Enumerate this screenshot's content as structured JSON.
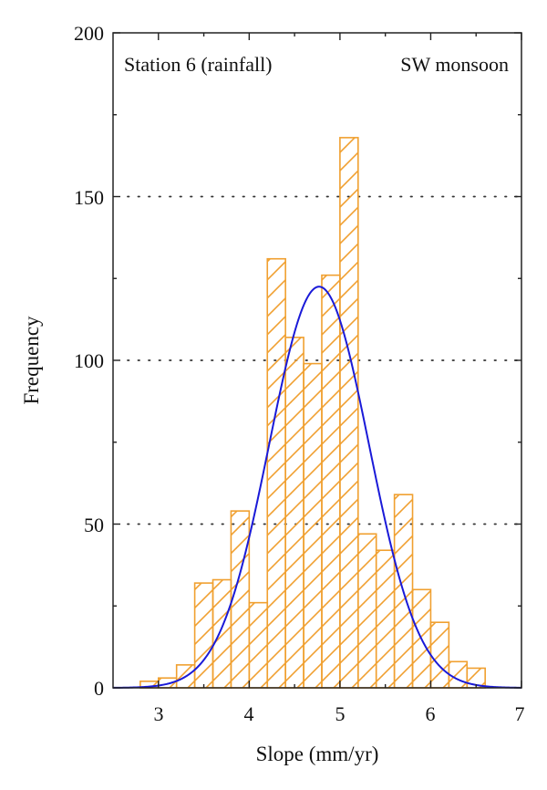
{
  "chart_data": {
    "type": "bar",
    "xlabel": "Slope (mm/yr)",
    "ylabel": "Frequency",
    "xlim": [
      2.5,
      7
    ],
    "ylim": [
      0,
      200
    ],
    "x_ticks": [
      "3",
      "4",
      "5",
      "6",
      "7"
    ],
    "y_ticks": [
      "0",
      "50",
      "100",
      "150",
      "200"
    ],
    "gridlines_y": [
      50,
      100,
      150
    ],
    "grid": "dotted horizontal",
    "bin_width": 0.2,
    "bins": [
      {
        "x0": 2.8,
        "x1": 3.0,
        "value": 2
      },
      {
        "x0": 3.0,
        "x1": 3.2,
        "value": 3
      },
      {
        "x0": 3.2,
        "x1": 3.4,
        "value": 7
      },
      {
        "x0": 3.4,
        "x1": 3.6,
        "value": 32
      },
      {
        "x0": 3.6,
        "x1": 3.8,
        "value": 33
      },
      {
        "x0": 3.8,
        "x1": 4.0,
        "value": 54
      },
      {
        "x0": 4.0,
        "x1": 4.2,
        "value": 26
      },
      {
        "x0": 4.2,
        "x1": 4.4,
        "value": 131
      },
      {
        "x0": 4.4,
        "x1": 4.6,
        "value": 107
      },
      {
        "x0": 4.6,
        "x1": 4.8,
        "value": 99
      },
      {
        "x0": 4.8,
        "x1": 5.0,
        "value": 126
      },
      {
        "x0": 5.0,
        "x1": 5.2,
        "value": 168
      },
      {
        "x0": 5.2,
        "x1": 5.4,
        "value": 47
      },
      {
        "x0": 5.4,
        "x1": 5.6,
        "value": 42
      },
      {
        "x0": 5.6,
        "x1": 5.8,
        "value": 59
      },
      {
        "x0": 5.8,
        "x1": 6.0,
        "value": 30
      },
      {
        "x0": 6.0,
        "x1": 6.2,
        "value": 20
      },
      {
        "x0": 6.2,
        "x1": 6.4,
        "value": 8
      },
      {
        "x0": 6.4,
        "x1": 6.6,
        "value": 6
      }
    ],
    "fit_curve": {
      "type": "normal",
      "mean": 4.77,
      "sd": 0.55,
      "peak": 122.5,
      "color": "#1a1ad8"
    },
    "bar_color": "#f0a030",
    "bar_fill": "diagonal hatch",
    "annotations": [
      "Station 6 (rainfall)",
      "SW monsoon"
    ]
  }
}
